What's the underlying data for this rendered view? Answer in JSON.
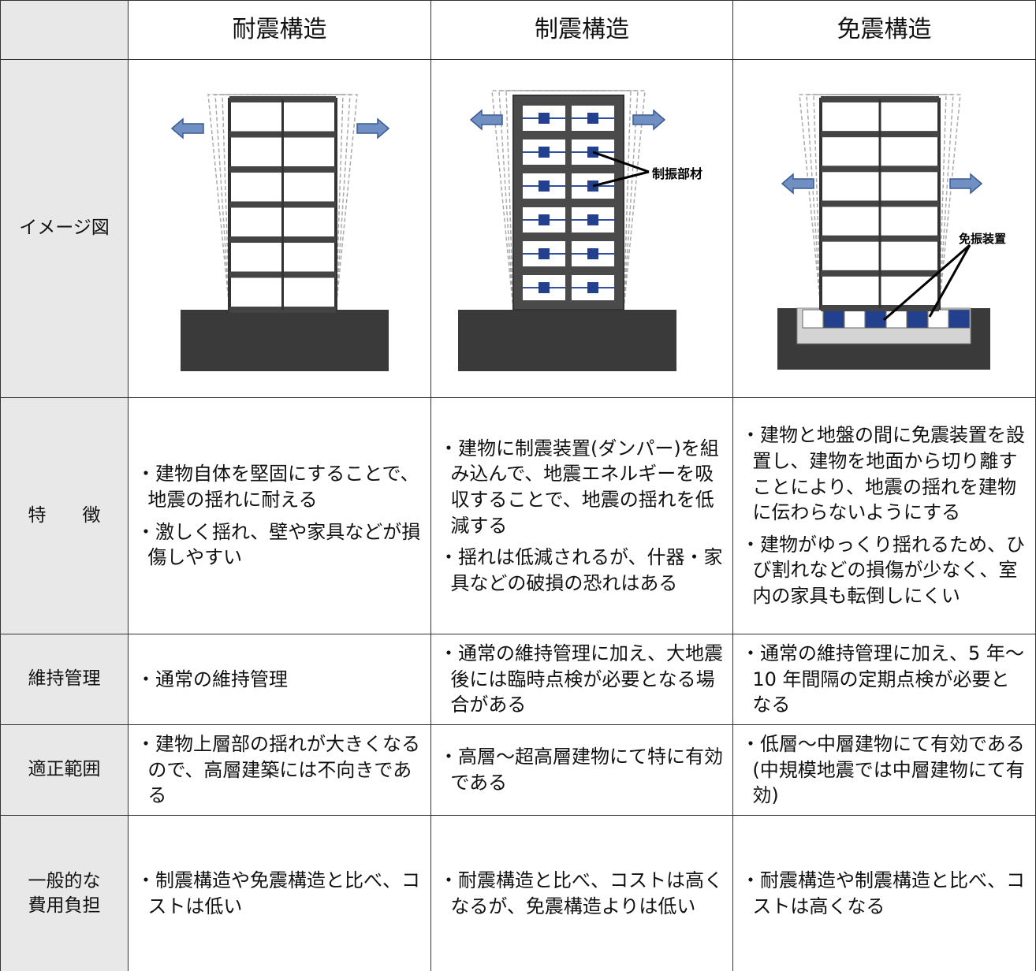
{
  "header": [
    "耐震構造",
    "制震構造",
    "免震構造"
  ],
  "image_row": {
    "label": "イメージ図",
    "diagram_labels": {
      "制震構造": "制振部材",
      "免震構造": "免振装置"
    }
  },
  "rows": [
    {
      "label": [
        "特　　徴"
      ],
      "cells": [
        [
          "・建物自体を堅固にすることで、地震の揺れに耐える",
          "・激しく揺れ、壁や家具などが損傷しやすい"
        ],
        [
          "・建物に制震装置(ダンパー)を組み込んで、地震エネルギーを吸収することで、地震の揺れを低減する",
          "・揺れは低減されるが、什器・家具などの破損の恐れはある"
        ],
        [
          "・建物と地盤の間に免震装置を設置し、建物を地面から切り離すことにより、地震の揺れを建物に伝わらないようにする",
          "・建物がゆっくり揺れるため、ひび割れなどの損傷が少なく、室内の家具も転倒しにくい"
        ]
      ]
    },
    {
      "label": [
        "維持管理"
      ],
      "cells": [
        [
          "・通常の維持管理"
        ],
        [
          "・通常の維持管理に加え、大地震後には臨時点検が必要となる場合がある"
        ],
        [
          "・通常の維持管理に加え、5 年～10 年間隔の定期点検が必要となる"
        ]
      ]
    },
    {
      "label": [
        "適正範囲"
      ],
      "cells": [
        [
          "・建物上層部の揺れが大きくなるので、高層建築には不向きである"
        ],
        [
          "・高層～超高層建物にて特に有効である"
        ],
        [
          "・低層～中層建物にて有効である(中規模地震では中層建物にて有効)"
        ]
      ]
    },
    {
      "label": [
        "一般的な",
        "費用負担"
      ],
      "cells": [
        [
          "・制震構造や免震構造と比べ、コストは低い"
        ],
        [
          "・耐震構造と比べ、コストは高くなるが、免震構造よりは低い"
        ],
        [
          "・耐震構造や制震構造と比べ、コストは高くなる"
        ]
      ]
    }
  ]
}
